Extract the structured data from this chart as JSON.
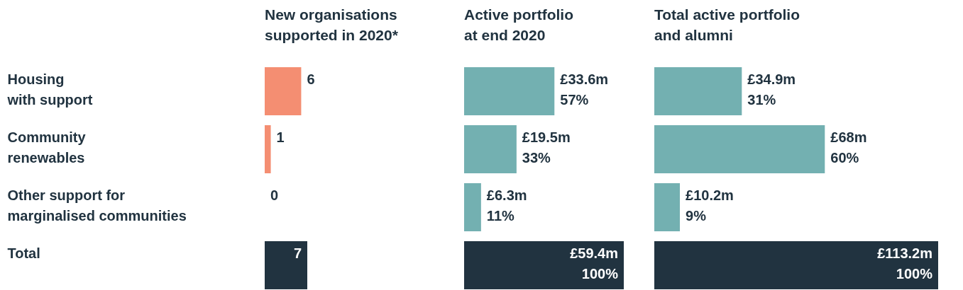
{
  "chart_data": [
    {
      "type": "bar",
      "orientation": "horizontal",
      "title": "New organisations\nsupported in 2020*",
      "categories": [
        "Housing\nwith support",
        "Community\nrenewables",
        "Other support for\nmarginalised communities",
        "Total"
      ],
      "values": [
        6,
        1,
        0,
        7
      ],
      "colors": [
        "#f48e72",
        "#f48e72",
        "#f48e72",
        "#213340"
      ],
      "data_labels": true,
      "tick_labels": "y"
    },
    {
      "type": "bar",
      "orientation": "horizontal",
      "title": "Active portfolio\nat end 2020",
      "categories": [
        "Housing\nwith support",
        "Community\nrenewables",
        "Other support for\nmarginalised communities",
        "Total"
      ],
      "values": [
        33.6,
        19.5,
        6.3,
        59.4
      ],
      "colors": [
        "#73b0b1",
        "#73b0b1",
        "#73b0b1",
        "#213340"
      ],
      "value_labels": [
        "£33.6m",
        "£19.5m",
        "£6.3m",
        "£59.4m"
      ],
      "annotations": [
        {
          "text": "57%",
          "x": 33.6,
          "y": "Housing\nwith support"
        },
        {
          "text": "33%",
          "x": 19.5,
          "y": "Community\nrenewables"
        },
        {
          "text": "11%",
          "x": 6.3,
          "y": "Other support for\nmarginalised communities"
        },
        {
          "text": "100%",
          "x": 59.4,
          "y": "Total"
        }
      ],
      "tick_labels": false
    },
    {
      "type": "bar",
      "orientation": "horizontal",
      "title": "Total active portfolio\nand alumni",
      "categories": [
        "Housing\nwith support",
        "Community\nrenewables",
        "Other support for\nmarginalised communities",
        "Total"
      ],
      "values": [
        34.9,
        68,
        10.2,
        113.2
      ],
      "colors": [
        "#73b0b1",
        "#73b0b1",
        "#73b0b1",
        "#213340"
      ],
      "value_labels": [
        "£34.9m",
        "£68m",
        "£10.2m",
        "£113.2m"
      ],
      "annotations": [
        {
          "text": "31%",
          "x": 34.9,
          "y": "Housing\nwith support"
        },
        {
          "text": "60%",
          "x": 68,
          "y": "Community\nrenewables"
        },
        {
          "text": "9%",
          "x": 10.2,
          "y": "Other support for\nmarginalised communities"
        },
        {
          "text": "100%",
          "x": 113.2,
          "y": "Total"
        }
      ],
      "tick_labels": false
    }
  ]
}
